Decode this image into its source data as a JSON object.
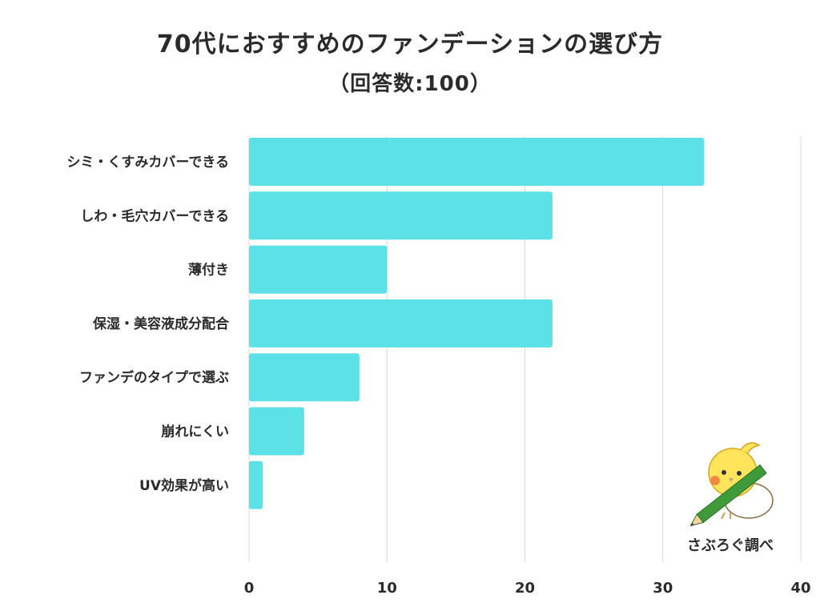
{
  "title_line1": "70代におすすめのファンデーションの選び方",
  "title_line2": "（回答数:100）",
  "credit": "さぶろぐ調べ",
  "colors": {
    "bar": "#5ce1e6",
    "grid": "#d9d9d9",
    "text": "#2b2b2b"
  },
  "chart_data": {
    "type": "bar",
    "orientation": "horizontal",
    "categories": [
      "シミ・くすみカバーできる",
      "しわ・毛穴カバーできる",
      "薄付き",
      "保湿・美容液成分配合",
      "ファンデのタイプで選ぶ",
      "崩れにくい",
      "UV効果が高い"
    ],
    "values": [
      33,
      22,
      10,
      22,
      8,
      4,
      1
    ],
    "xlim": [
      0,
      40
    ],
    "xticks": [
      0,
      10,
      20,
      30,
      40
    ],
    "grid": true
  }
}
